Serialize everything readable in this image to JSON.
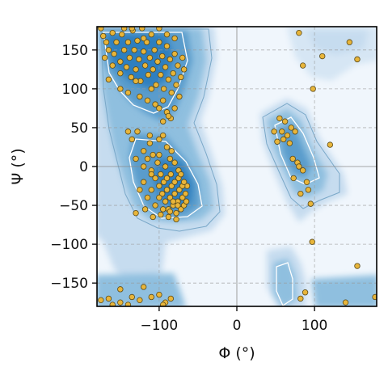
{
  "chart_data": {
    "type": "scatter",
    "title": "",
    "xlabel": "Φ (°)",
    "ylabel": "Ψ (°)",
    "xlim": [
      -180,
      180
    ],
    "ylim": [
      -180,
      180
    ],
    "xticks": [
      -100,
      0,
      100
    ],
    "xtick_labels": [
      "−100",
      "0",
      "100"
    ],
    "yticks": [
      -150,
      -100,
      -50,
      0,
      50,
      100,
      150
    ],
    "ytick_labels": [
      "−150",
      "−100",
      "−50",
      "0",
      "50",
      "100",
      "150"
    ],
    "grid": true,
    "legend": "none",
    "background": "Ramachandran density map (blue shades) with contour lines",
    "point_color": "#e8b53a",
    "point_edge_color": "#5a4a1a",
    "density_colors": [
      "#f0f6fc",
      "#c6dcef",
      "#8fbfdf",
      "#5a9ccc",
      "#2f7fbf"
    ],
    "points": [
      [
        -175,
        178
      ],
      [
        -172,
        168
      ],
      [
        -168,
        160
      ],
      [
        -165,
        150
      ],
      [
        -160,
        172
      ],
      [
        -158,
        145
      ],
      [
        -155,
        160
      ],
      [
        -150,
        135
      ],
      [
        -148,
        170
      ],
      [
        -145,
        150
      ],
      [
        -142,
        128
      ],
      [
        -140,
        160
      ],
      [
        -138,
        140
      ],
      [
        -136,
        115
      ],
      [
        -134,
        175
      ],
      [
        -132,
        150
      ],
      [
        -130,
        125
      ],
      [
        -128,
        162
      ],
      [
        -126,
        138
      ],
      [
        -124,
        110
      ],
      [
        -122,
        178
      ],
      [
        -120,
        148
      ],
      [
        -118,
        130
      ],
      [
        -116,
        160
      ],
      [
        -114,
        118
      ],
      [
        -112,
        140
      ],
      [
        -110,
        170
      ],
      [
        -108,
        125
      ],
      [
        -106,
        150
      ],
      [
        -104,
        105
      ],
      [
        -102,
        135
      ],
      [
        -100,
        160
      ],
      [
        -98,
        118
      ],
      [
        -96,
        142
      ],
      [
        -94,
        100
      ],
      [
        -92,
        128
      ],
      [
        -90,
        155
      ],
      [
        -88,
        112
      ],
      [
        -86,
        138
      ],
      [
        -84,
        95
      ],
      [
        -82,
        120
      ],
      [
        -80,
        145
      ],
      [
        -78,
        105
      ],
      [
        -76,
        130
      ],
      [
        -74,
        90
      ],
      [
        -72,
        115
      ],
      [
        -70,
        140
      ],
      [
        -68,
        125
      ],
      [
        -150,
        100
      ],
      [
        -140,
        95
      ],
      [
        -130,
        110
      ],
      [
        -125,
        90
      ],
      [
        -115,
        85
      ],
      [
        -110,
        100
      ],
      [
        -105,
        80
      ],
      [
        -100,
        75
      ],
      [
        -95,
        85
      ],
      [
        -90,
        70
      ],
      [
        -85,
        62
      ],
      [
        -80,
        75
      ],
      [
        -95,
        58
      ],
      [
        -88,
        65
      ],
      [
        -145,
        178
      ],
      [
        -135,
        178
      ],
      [
        -120,
        165
      ],
      [
        -100,
        178
      ],
      [
        -90,
        170
      ],
      [
        -80,
        165
      ],
      [
        -160,
        130
      ],
      [
        -150,
        120
      ],
      [
        -170,
        140
      ],
      [
        -165,
        112
      ],
      [
        -140,
        45
      ],
      [
        -135,
        35
      ],
      [
        -128,
        45
      ],
      [
        -120,
        20
      ],
      [
        -115,
        10
      ],
      [
        -112,
        30
      ],
      [
        -110,
        -5
      ],
      [
        -108,
        15
      ],
      [
        -105,
        -15
      ],
      [
        -102,
        5
      ],
      [
        -100,
        -25
      ],
      [
        -98,
        -10
      ],
      [
        -96,
        -35
      ],
      [
        -94,
        -20
      ],
      [
        -92,
        -45
      ],
      [
        -90,
        -30
      ],
      [
        -88,
        -55
      ],
      [
        -86,
        -40
      ],
      [
        -84,
        -25
      ],
      [
        -82,
        -50
      ],
      [
        -80,
        -35
      ],
      [
        -78,
        -60
      ],
      [
        -76,
        -45
      ],
      [
        -74,
        -30
      ],
      [
        -72,
        -55
      ],
      [
        -70,
        -40
      ],
      [
        -68,
        -50
      ],
      [
        -66,
        -35
      ],
      [
        -65,
        -45
      ],
      [
        -64,
        -25
      ],
      [
        -100,
        -40
      ],
      [
        -95,
        -55
      ],
      [
        -90,
        -15
      ],
      [
        -85,
        -10
      ],
      [
        -80,
        -20
      ],
      [
        -75,
        -15
      ],
      [
        -70,
        -25
      ],
      [
        -105,
        -50
      ],
      [
        -110,
        -30
      ],
      [
        -115,
        -40
      ],
      [
        -120,
        -20
      ],
      [
        -125,
        -30
      ],
      [
        -118,
        -55
      ],
      [
        -130,
        -60
      ],
      [
        -108,
        -65
      ],
      [
        -98,
        -62
      ],
      [
        -88,
        -65
      ],
      [
        -78,
        -68
      ],
      [
        -92,
        0
      ],
      [
        -86,
        10
      ],
      [
        -80,
        5
      ],
      [
        -100,
        15
      ],
      [
        -110,
        -10
      ],
      [
        -120,
        0
      ],
      [
        -112,
        40
      ],
      [
        -100,
        35
      ],
      [
        -90,
        25
      ],
      [
        -84,
        20
      ],
      [
        -95,
        40
      ],
      [
        -130,
        10
      ],
      [
        -75,
        -5
      ],
      [
        -72,
        -10
      ],
      [
        -68,
        -20
      ],
      [
        -76,
        -50
      ],
      [
        -82,
        -45
      ],
      [
        -86,
        -58
      ],
      [
        55,
        62
      ],
      [
        62,
        58
      ],
      [
        58,
        45
      ],
      [
        65,
        40
      ],
      [
        60,
        35
      ],
      [
        68,
        30
      ],
      [
        52,
        32
      ],
      [
        70,
        50
      ],
      [
        75,
        45
      ],
      [
        72,
        10
      ],
      [
        78,
        5
      ],
      [
        80,
        0
      ],
      [
        85,
        -5
      ],
      [
        90,
        -20
      ],
      [
        92,
        -30
      ],
      [
        95,
        -48
      ],
      [
        82,
        -35
      ],
      [
        73,
        -15
      ],
      [
        120,
        28
      ],
      [
        48,
        45
      ],
      [
        98,
        100
      ],
      [
        85,
        130
      ],
      [
        110,
        142
      ],
      [
        145,
        160
      ],
      [
        155,
        138
      ],
      [
        80,
        172
      ],
      [
        97,
        -97
      ],
      [
        155,
        -128
      ],
      [
        88,
        -162
      ],
      [
        82,
        -170
      ],
      [
        140,
        -175
      ],
      [
        178,
        -168
      ],
      [
        -175,
        -172
      ],
      [
        -165,
        -170
      ],
      [
        -160,
        -178
      ],
      [
        -150,
        -175
      ],
      [
        -135,
        -168
      ],
      [
        -125,
        -172
      ],
      [
        -110,
        -168
      ],
      [
        -100,
        -165
      ],
      [
        -92,
        -175
      ],
      [
        -85,
        -170
      ],
      [
        -95,
        -178
      ],
      [
        -140,
        -178
      ],
      [
        -150,
        -158
      ],
      [
        -120,
        -155
      ]
    ]
  }
}
